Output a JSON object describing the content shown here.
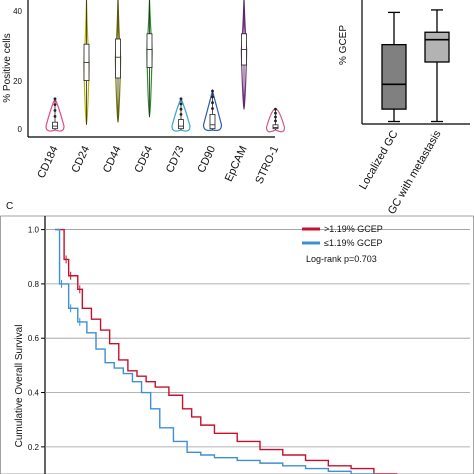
{
  "chart_data": [
    {
      "type": "violin",
      "ylabel": "% Positive cells",
      "yticks": [
        "0",
        "20",
        "40"
      ],
      "ylim": [
        0,
        50
      ],
      "categories": [
        "CD184",
        "CD24",
        "CD44",
        "CD54",
        "CD73",
        "CD90",
        "EpCAM",
        "STRO-1"
      ],
      "colors": [
        "#e24a87",
        "#b9b30c",
        "#7d7d00",
        "#2c8f2c",
        "#35a7c9",
        "#2e5da8",
        "#7a2f8f",
        "#d65a8b"
      ],
      "series": [
        {
          "min": 0,
          "q1": 0.5,
          "median": 1.5,
          "q3": 3,
          "max": 12
        },
        {
          "min": 2,
          "q1": 19,
          "median": 26,
          "q3": 33,
          "max": 50
        },
        {
          "min": 3,
          "q1": 20,
          "median": 28,
          "q3": 35,
          "max": 50
        },
        {
          "min": 5,
          "q1": 24,
          "median": 31,
          "q3": 37,
          "max": 50
        },
        {
          "min": 0,
          "q1": 0.5,
          "median": 1.5,
          "q3": 4,
          "max": 12
        },
        {
          "min": 0,
          "q1": 0.5,
          "median": 2,
          "q3": 6,
          "max": 15
        },
        {
          "min": 8,
          "q1": 25,
          "median": 31,
          "q3": 37,
          "max": 50
        },
        {
          "min": 0,
          "q1": 0.5,
          "median": 1,
          "q3": 2,
          "max": 8
        }
      ]
    },
    {
      "type": "box",
      "ylabel": "% GCEP",
      "categories": [
        "Localized GC",
        "GC with metastasis"
      ],
      "series": [
        {
          "min": 0.05,
          "q1": 0.3,
          "median": 0.8,
          "q3": 1.6,
          "max": 2.25,
          "color": "#808080"
        },
        {
          "min": 0.05,
          "q1": 1.25,
          "median": 1.7,
          "q3": 1.85,
          "max": 2.3,
          "color": "#b3b3b3"
        }
      ],
      "ylim": [
        0,
        2.5
      ]
    },
    {
      "type": "line",
      "panel_label": "C",
      "ylabel": "Cumulative Overall Survival",
      "yticks": [
        "0.2",
        "0.4",
        "0.6",
        "0.8",
        "1.0"
      ],
      "ylim": [
        0.1,
        1.05
      ],
      "legend": [
        ">1.19% GCEP",
        "≤1.19% GCEP"
      ],
      "annotation": "Log-rank   p=0.703",
      "series": [
        {
          "name": ">1.19% GCEP",
          "color": "#c8102e",
          "x": [
            0,
            2,
            3,
            5,
            6,
            8,
            10,
            12,
            14,
            16,
            18,
            20,
            22,
            25,
            28,
            30,
            32,
            35,
            40,
            45,
            50,
            55,
            60,
            65,
            70,
            75,
            80,
            85,
            90
          ],
          "y": [
            1.0,
            0.89,
            0.83,
            0.78,
            0.71,
            0.67,
            0.63,
            0.58,
            0.52,
            0.48,
            0.46,
            0.44,
            0.42,
            0.39,
            0.34,
            0.31,
            0.28,
            0.25,
            0.22,
            0.19,
            0.17,
            0.15,
            0.13,
            0.12,
            0.1,
            0.09,
            0.08,
            0.08,
            0.07
          ]
        },
        {
          "name": "≤1.19% GCEP",
          "color": "#3d8fd6",
          "x": [
            0,
            1,
            3,
            5,
            7,
            9,
            11,
            13,
            15,
            17,
            19,
            21,
            23,
            26,
            29,
            32,
            35,
            40,
            45,
            50,
            55,
            60,
            65,
            70,
            75
          ],
          "y": [
            1.0,
            0.8,
            0.71,
            0.66,
            0.62,
            0.56,
            0.51,
            0.49,
            0.47,
            0.44,
            0.4,
            0.34,
            0.27,
            0.22,
            0.18,
            0.17,
            0.16,
            0.15,
            0.14,
            0.13,
            0.12,
            0.11,
            0.1,
            0.09,
            0.08
          ]
        }
      ]
    }
  ]
}
